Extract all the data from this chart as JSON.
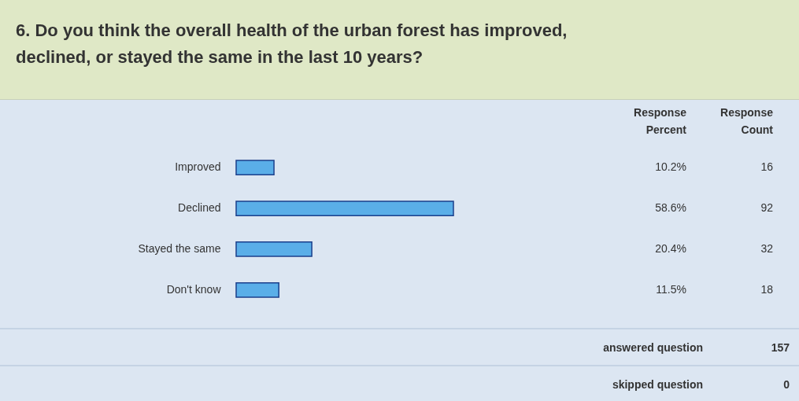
{
  "chart_data": {
    "type": "bar",
    "orientation": "horizontal",
    "title": "6. Do you think the overall health of the urban forest has improved, declined, or stayed the same in the last 10 years?",
    "categories": [
      "Improved",
      "Declined",
      "Stayed the same",
      "Don't know"
    ],
    "series": [
      {
        "name": "Response Percent",
        "color": "#5aaee8",
        "values": [
          10.2,
          58.6,
          20.4,
          11.5
        ],
        "value_labels": [
          "10.2%",
          "58.6%",
          "20.4%",
          "11.5%"
        ]
      }
    ],
    "tick_labels": "y",
    "grid": false,
    "annotations": [
      "Response Count",
      "16",
      "92",
      "32",
      "18",
      "answered question",
      "157",
      "skipped question",
      "0"
    ]
  }
}
